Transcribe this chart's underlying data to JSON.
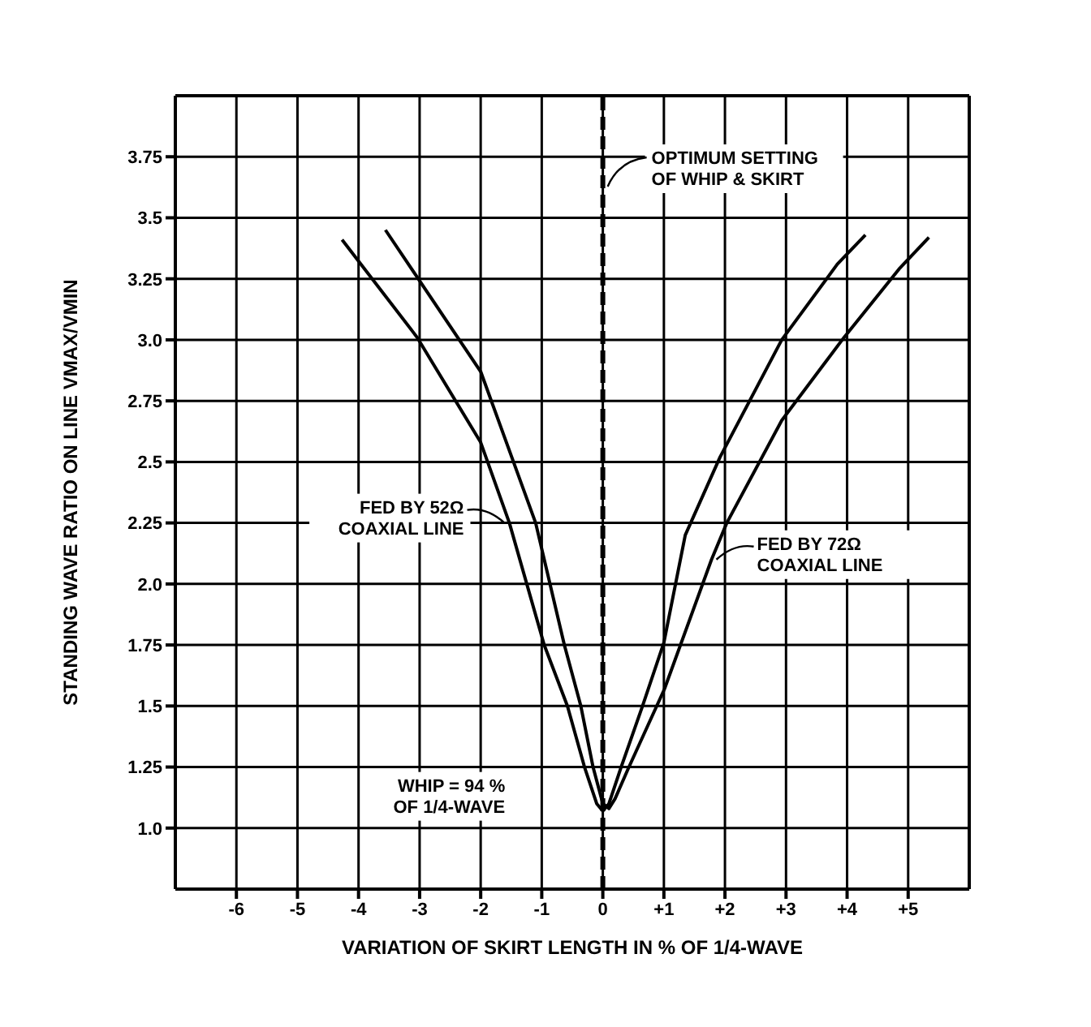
{
  "chart_data": {
    "type": "line",
    "xlabel": "VARIATION OF SKIRT LENGTH IN % OF 1/4-WAVE",
    "ylabel": "STANDING WAVE RATIO ON LINE VMAX/VMIN",
    "xlim": [
      -7,
      6
    ],
    "xticks": [
      -6,
      -5,
      -4,
      -3,
      -2,
      -1,
      0,
      {
        "value": 1,
        "label": "+1"
      },
      {
        "value": 2,
        "label": "+2"
      },
      {
        "value": 3,
        "label": "+3"
      },
      {
        "value": 4,
        "label": "+4"
      },
      {
        "value": 5,
        "label": "+5"
      }
    ],
    "ylim": [
      0.75,
      4
    ],
    "yticks": [
      {
        "value": 1,
        "label": "1.0"
      },
      1.25,
      1.5,
      1.75,
      {
        "value": 2,
        "label": "2.0"
      },
      2.25,
      2.5,
      2.75,
      {
        "value": 3,
        "label": "3.0"
      },
      3.25,
      3.5,
      3.75
    ],
    "grid": true,
    "line_style": "solid",
    "marker": "none",
    "series": [
      {
        "name": "FED BY 52Ω COAXIAL LINE",
        "color": "#000000",
        "x": [
          -4.27,
          -3.04,
          -2.0,
          -1.53,
          -0.96,
          -0.58,
          -0.3,
          -0.1,
          0,
          0.1,
          0.3,
          0.65,
          1.0,
          1.35,
          1.92,
          2.93,
          3.84,
          4.3
        ],
        "values": [
          3.41,
          3.01,
          2.58,
          2.25,
          1.75,
          1.5,
          1.25,
          1.1,
          1.07,
          1.1,
          1.25,
          1.5,
          1.76,
          2.2,
          2.52,
          3.0,
          3.31,
          3.43
        ]
      },
      {
        "name": "FED BY 72Ω COAXIAL LINE",
        "color": "#000000",
        "x": [
          -3.56,
          -2.0,
          -1.1,
          -0.63,
          -0.36,
          -0.16,
          0,
          0.1,
          0.2,
          0.41,
          1.01,
          1.78,
          2.03,
          2.93,
          3.95,
          4.85,
          5.34
        ],
        "values": [
          3.45,
          2.87,
          2.25,
          1.75,
          1.5,
          1.25,
          1.1,
          1.08,
          1.12,
          1.24,
          1.57,
          2.1,
          2.25,
          2.67,
          3.01,
          3.29,
          3.42
        ]
      }
    ],
    "ref_lines": [
      {
        "axis": "x",
        "value": 0,
        "label": "OPTIMUM SETTING OF WHIP & SKIRT",
        "line_style": "dashed",
        "color": "#000000"
      }
    ],
    "annotations": [
      "WHIP = 94 % OF 1/4-WAVE"
    ]
  }
}
